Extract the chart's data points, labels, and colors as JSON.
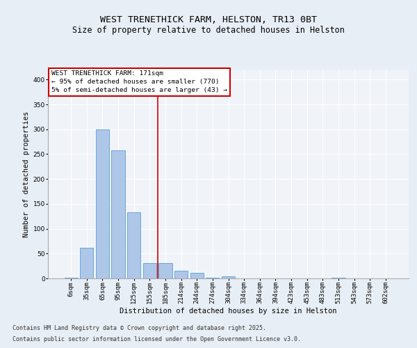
{
  "title_line1": "WEST TRENETHICK FARM, HELSTON, TR13 0BT",
  "title_line2": "Size of property relative to detached houses in Helston",
  "xlabel": "Distribution of detached houses by size in Helston",
  "ylabel": "Number of detached properties",
  "bar_color": "#aec6e8",
  "bar_edge_color": "#5a9fd4",
  "categories": [
    "6sqm",
    "35sqm",
    "65sqm",
    "95sqm",
    "125sqm",
    "155sqm",
    "185sqm",
    "214sqm",
    "244sqm",
    "274sqm",
    "304sqm",
    "334sqm",
    "364sqm",
    "394sqm",
    "423sqm",
    "453sqm",
    "483sqm",
    "513sqm",
    "543sqm",
    "573sqm",
    "602sqm"
  ],
  "values": [
    2,
    62,
    300,
    258,
    133,
    31,
    31,
    15,
    11,
    1,
    4,
    0,
    0,
    0,
    0,
    0,
    0,
    1,
    0,
    0,
    0
  ],
  "vline_x": 5.5,
  "vline_color": "#cc0000",
  "annotation_text": "WEST TRENETHICK FARM: 171sqm\n← 95% of detached houses are smaller (770)\n5% of semi-detached houses are larger (43) →",
  "annotation_box_color": "white",
  "annotation_box_edge": "#cc0000",
  "ylim": [
    0,
    420
  ],
  "yticks": [
    0,
    50,
    100,
    150,
    200,
    250,
    300,
    350,
    400
  ],
  "background_color": "#e8eef5",
  "plot_bg_color": "#f0f4f9",
  "footer_line1": "Contains HM Land Registry data © Crown copyright and database right 2025.",
  "footer_line2": "Contains public sector information licensed under the Open Government Licence v3.0.",
  "grid_color": "white",
  "title_fontsize": 9.5,
  "subtitle_fontsize": 8.5,
  "axis_label_fontsize": 7.5,
  "tick_fontsize": 6.5,
  "annotation_fontsize": 6.8,
  "footer_fontsize": 6.0
}
